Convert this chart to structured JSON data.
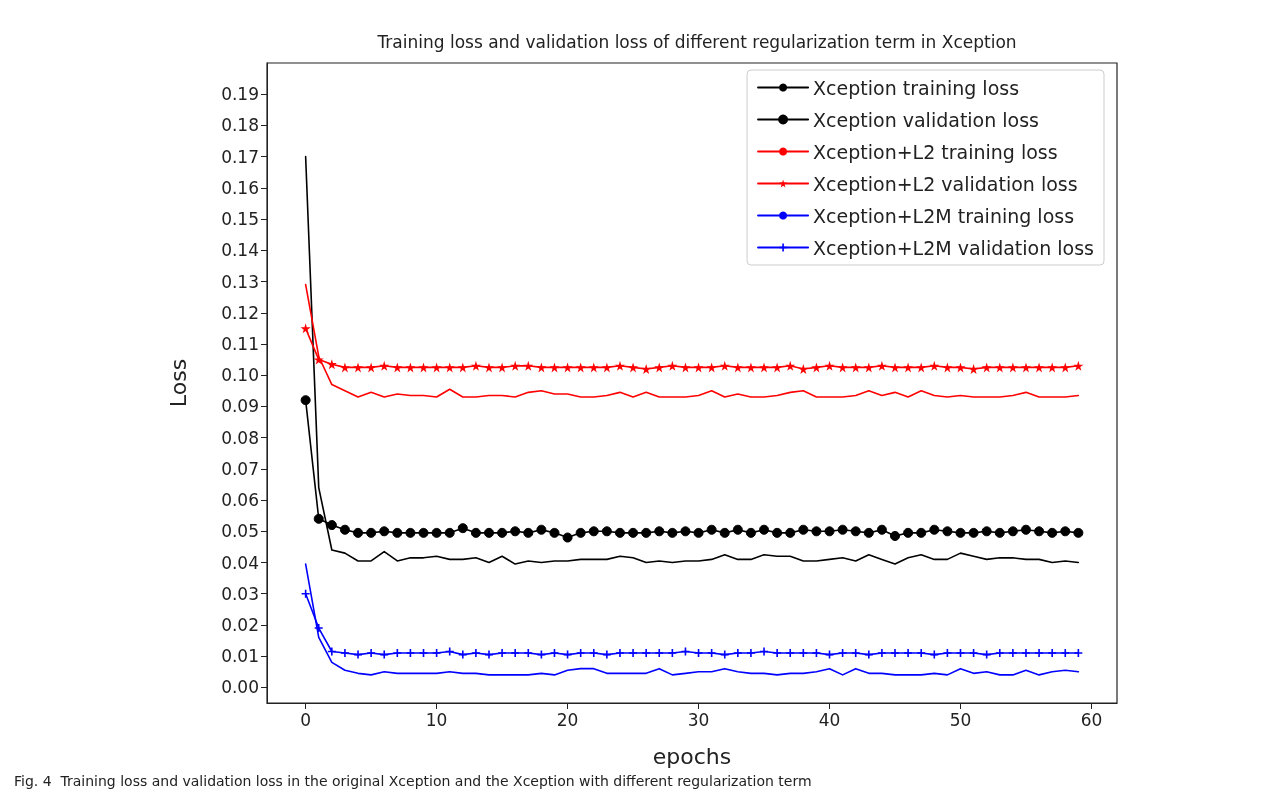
{
  "chart_data": {
    "type": "line",
    "title": "Training loss and validation loss of different regularization term in Xception",
    "xlabel": "epochs",
    "ylabel": "Loss",
    "annotations": [
      "Fig. 4  Training loss and validation loss in the original Xception and the Xception with different regularization term"
    ],
    "x": [
      0,
      1,
      2,
      3,
      4,
      5,
      6,
      7,
      8,
      9,
      10,
      11,
      12,
      13,
      14,
      15,
      16,
      17,
      18,
      19,
      20,
      21,
      22,
      23,
      24,
      25,
      26,
      27,
      28,
      29,
      30,
      31,
      32,
      33,
      34,
      35,
      36,
      37,
      38,
      39,
      40,
      41,
      42,
      43,
      44,
      45,
      46,
      47,
      48,
      49,
      50,
      51,
      52,
      53,
      54,
      55,
      56,
      57,
      58,
      59
    ],
    "series": [
      {
        "name": "Xception training loss",
        "color": "#000000",
        "marker": "none",
        "values": [
          0.17,
          0.064,
          0.044,
          0.043,
          0.0405,
          0.0405,
          0.0435,
          0.0405,
          0.0415,
          0.0415,
          0.042,
          0.041,
          0.041,
          0.0415,
          0.04,
          0.042,
          0.0395,
          0.0405,
          0.04,
          0.0405,
          0.0405,
          0.041,
          0.041,
          0.041,
          0.042,
          0.0415,
          0.04,
          0.0405,
          0.04,
          0.0405,
          0.0405,
          0.041,
          0.0425,
          0.041,
          0.041,
          0.0425,
          0.042,
          0.042,
          0.0405,
          0.0405,
          0.041,
          0.0415,
          0.0405,
          0.0425,
          0.041,
          0.0395,
          0.0415,
          0.0425,
          0.041,
          0.041,
          0.043,
          0.042,
          0.041,
          0.0415,
          0.0415,
          0.041,
          0.041,
          0.04,
          0.0405,
          0.04
        ]
      },
      {
        "name": "Xception validation loss",
        "color": "#000000",
        "marker": "circle",
        "values": [
          0.092,
          0.054,
          0.052,
          0.0505,
          0.0495,
          0.0495,
          0.05,
          0.0495,
          0.0495,
          0.0495,
          0.0495,
          0.0495,
          0.051,
          0.0495,
          0.0495,
          0.0495,
          0.05,
          0.0495,
          0.0505,
          0.0495,
          0.048,
          0.0495,
          0.05,
          0.05,
          0.0495,
          0.0495,
          0.0495,
          0.05,
          0.0495,
          0.05,
          0.0495,
          0.0505,
          0.0495,
          0.0505,
          0.0495,
          0.0505,
          0.0495,
          0.0495,
          0.0505,
          0.05,
          0.05,
          0.0505,
          0.05,
          0.0495,
          0.0505,
          0.0485,
          0.0495,
          0.0495,
          0.0505,
          0.05,
          0.0495,
          0.0495,
          0.05,
          0.0495,
          0.05,
          0.0505,
          0.05,
          0.0495,
          0.05,
          0.0495
        ]
      },
      {
        "name": "Xception+L2 training loss",
        "color": "#ff0000",
        "marker": "none",
        "values": [
          0.129,
          0.106,
          0.097,
          0.095,
          0.093,
          0.0945,
          0.093,
          0.094,
          0.0935,
          0.0935,
          0.093,
          0.0955,
          0.093,
          0.093,
          0.0935,
          0.0935,
          0.093,
          0.0945,
          0.095,
          0.094,
          0.094,
          0.093,
          0.093,
          0.0935,
          0.0945,
          0.093,
          0.0945,
          0.093,
          0.093,
          0.093,
          0.0935,
          0.095,
          0.093,
          0.094,
          0.093,
          0.093,
          0.0935,
          0.0945,
          0.095,
          0.093,
          0.093,
          0.093,
          0.0935,
          0.095,
          0.0935,
          0.0945,
          0.093,
          0.095,
          0.0935,
          0.093,
          0.0935,
          0.093,
          0.093,
          0.093,
          0.0935,
          0.0945,
          0.093,
          0.093,
          0.093,
          0.0935
        ]
      },
      {
        "name": "Xception+L2 validation loss",
        "color": "#ff0000",
        "marker": "star",
        "values": [
          0.115,
          0.105,
          0.1035,
          0.1025,
          0.1025,
          0.1025,
          0.103,
          0.1025,
          0.1025,
          0.1025,
          0.1025,
          0.1025,
          0.1025,
          0.103,
          0.1025,
          0.1025,
          0.103,
          0.103,
          0.1025,
          0.1025,
          0.1025,
          0.1025,
          0.1025,
          0.1025,
          0.103,
          0.1025,
          0.102,
          0.1025,
          0.103,
          0.1025,
          0.1025,
          0.1025,
          0.103,
          0.1025,
          0.1025,
          0.1025,
          0.1025,
          0.103,
          0.102,
          0.1025,
          0.103,
          0.1025,
          0.1025,
          0.1025,
          0.103,
          0.1025,
          0.1025,
          0.1025,
          0.103,
          0.1025,
          0.1025,
          0.102,
          0.1025,
          0.1025,
          0.1025,
          0.1025,
          0.1025,
          0.1025,
          0.1025,
          0.103
        ]
      },
      {
        "name": "Xception+L2M training loss",
        "color": "#0000ff",
        "marker": "none",
        "values": [
          0.0395,
          0.016,
          0.008,
          0.0055,
          0.0045,
          0.004,
          0.005,
          0.0045,
          0.0045,
          0.0045,
          0.0045,
          0.005,
          0.0045,
          0.0045,
          0.004,
          0.004,
          0.004,
          0.004,
          0.0045,
          0.004,
          0.0055,
          0.006,
          0.006,
          0.0045,
          0.0045,
          0.0045,
          0.0045,
          0.006,
          0.004,
          0.0045,
          0.005,
          0.005,
          0.006,
          0.005,
          0.0045,
          0.0045,
          0.004,
          0.0045,
          0.0045,
          0.005,
          0.006,
          0.004,
          0.006,
          0.0045,
          0.0045,
          0.004,
          0.004,
          0.004,
          0.0045,
          0.004,
          0.006,
          0.0045,
          0.005,
          0.004,
          0.004,
          0.0055,
          0.004,
          0.005,
          0.0055,
          0.005
        ]
      },
      {
        "name": "Xception+L2M validation loss",
        "color": "#0000ff",
        "marker": "cross",
        "values": [
          0.03,
          0.019,
          0.0115,
          0.011,
          0.0105,
          0.011,
          0.0105,
          0.011,
          0.011,
          0.011,
          0.011,
          0.0115,
          0.0105,
          0.011,
          0.0105,
          0.011,
          0.011,
          0.011,
          0.0105,
          0.011,
          0.0105,
          0.011,
          0.011,
          0.0105,
          0.011,
          0.011,
          0.011,
          0.011,
          0.011,
          0.0115,
          0.011,
          0.011,
          0.0105,
          0.011,
          0.011,
          0.0115,
          0.011,
          0.011,
          0.011,
          0.011,
          0.0105,
          0.011,
          0.011,
          0.0105,
          0.011,
          0.011,
          0.011,
          0.011,
          0.0105,
          0.011,
          0.011,
          0.011,
          0.0105,
          0.011,
          0.011,
          0.011,
          0.011,
          0.011,
          0.011,
          0.011
        ]
      }
    ],
    "xlim": [
      -2.95,
      61.95
    ],
    "xticks": [
      0,
      10,
      20,
      30,
      40,
      50,
      60
    ],
    "ylim": [
      -0.005,
      0.2
    ],
    "yticks": [
      {
        "value": 0,
        "label": "0.00"
      },
      {
        "value": 0.01,
        "label": "0.01"
      },
      {
        "value": 0.02,
        "label": "0.02"
      },
      {
        "value": 0.03,
        "label": "0.03"
      },
      {
        "value": 0.04,
        "label": "0.04"
      },
      {
        "value": 0.05,
        "label": "0.05"
      },
      {
        "value": 0.06,
        "label": "0.06"
      },
      {
        "value": 0.07,
        "label": "0.07"
      },
      {
        "value": 0.08,
        "label": "0.08"
      },
      {
        "value": 0.09,
        "label": "0.09"
      },
      {
        "value": 0.1,
        "label": "0.10"
      },
      {
        "value": 0.11,
        "label": "0.11"
      },
      {
        "value": 0.12,
        "label": "0.12"
      },
      {
        "value": 0.13,
        "label": "0.13"
      },
      {
        "value": 0.14,
        "label": "0.14"
      },
      {
        "value": 0.15,
        "label": "0.15"
      },
      {
        "value": 0.16,
        "label": "0.16"
      },
      {
        "value": 0.17,
        "label": "0.17"
      },
      {
        "value": 0.18,
        "label": "0.18"
      },
      {
        "value": 0.19,
        "label": "0.19"
      }
    ],
    "grid": false,
    "legend": "top right"
  }
}
